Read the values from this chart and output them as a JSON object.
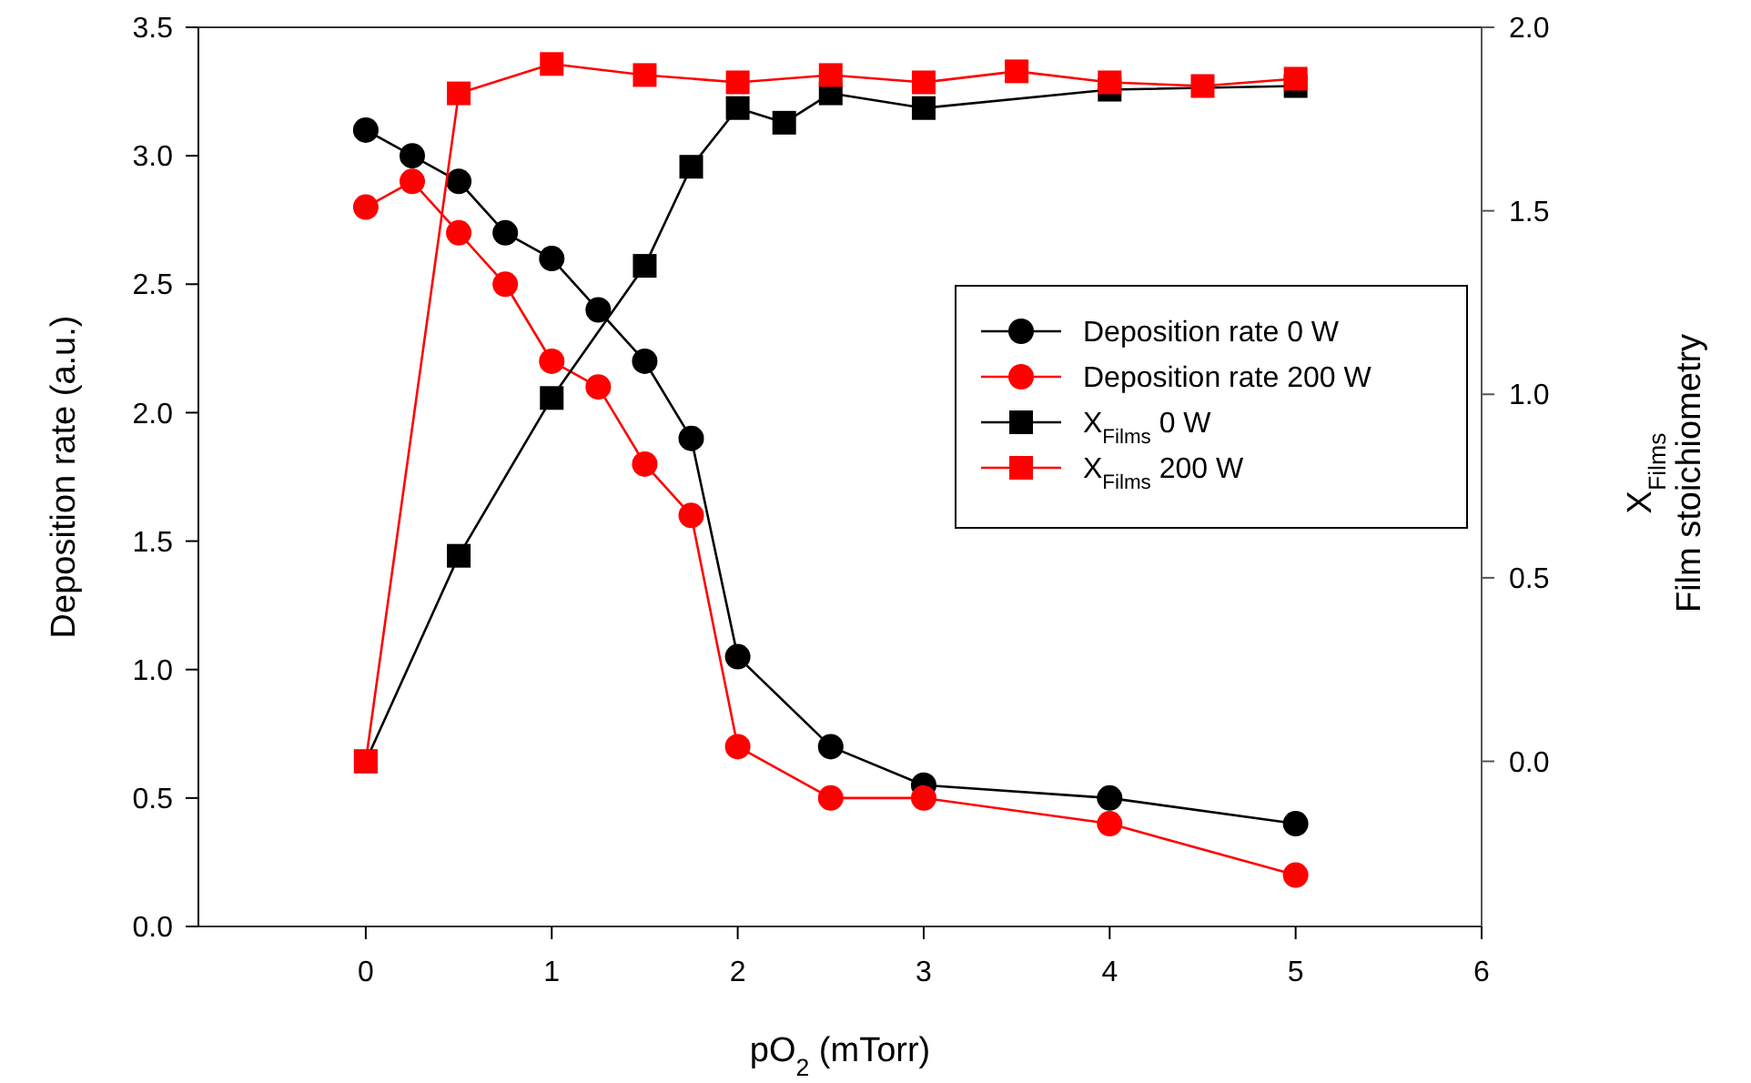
{
  "chart_data": {
    "type": "line",
    "xlabel": "pO$_{2}$ (mTorr)",
    "ylabel": "Deposition rate (a.u.)",
    "y2label": "X$_{Films}$\nFilm stoichiometry",
    "xlim": [
      -0.9,
      6
    ],
    "xticks": [
      0,
      1,
      2,
      3,
      4,
      5,
      6
    ],
    "ylim": [
      0,
      3.5
    ],
    "yticks": [
      {
        "value": 0,
        "label": "0.0"
      },
      0.5,
      {
        "value": 1,
        "label": "1.0"
      },
      1.5,
      {
        "value": 2,
        "label": "2.0"
      },
      2.5,
      {
        "value": 3,
        "label": "3.0"
      },
      3.5
    ],
    "y2lim": [
      -0.45,
      2.0
    ],
    "y2ticks": [
      {
        "value": 0,
        "label": "0.0"
      },
      0.5,
      {
        "value": 1,
        "label": "1.0"
      },
      1.5,
      {
        "value": 2,
        "label": "2.0"
      }
    ],
    "grid": false,
    "legend": "right",
    "line_style": "solid",
    "series": [
      {
        "name": "Deposition rate 0 W",
        "color": "#000000",
        "marker": "circle",
        "x": [
          0,
          0.25,
          0.5,
          0.75,
          1,
          1.25,
          1.5,
          1.75,
          2,
          2.5,
          3,
          4,
          5
        ],
        "values": [
          3.1,
          3.0,
          2.9,
          2.7,
          2.6,
          2.4,
          2.2,
          1.9,
          1.05,
          0.7,
          0.55,
          0.5,
          0.4
        ]
      },
      {
        "name": "Deposition rate 200 W",
        "color": "#ff0000",
        "marker": "circle",
        "x": [
          0,
          0.25,
          0.5,
          0.75,
          1,
          1.25,
          1.5,
          1.75,
          2,
          2.5,
          3,
          4,
          5
        ],
        "values": [
          2.8,
          2.9,
          2.7,
          2.5,
          2.2,
          2.1,
          1.8,
          1.6,
          0.7,
          0.5,
          0.5,
          0.4,
          0.2
        ]
      },
      {
        "name": "X$_{Films}$ 0 W",
        "color": "#000000",
        "marker": "square",
        "axis": "y2",
        "x": [
          0,
          0.5,
          1,
          1.5,
          1.75,
          2,
          2.25,
          2.5,
          3,
          4,
          5
        ],
        "values": [
          0.0,
          0.56,
          0.99,
          1.35,
          1.62,
          1.78,
          1.74,
          1.82,
          1.78,
          1.83,
          1.84
        ]
      },
      {
        "name": "X$_{Films}$ 200 W",
        "color": "#ff0000",
        "marker": "square",
        "axis": "y2",
        "x": [
          0,
          0.5,
          1,
          1.5,
          2,
          2.5,
          3,
          3.5,
          4,
          4.5,
          5
        ],
        "values": [
          0.0,
          1.82,
          1.9,
          1.87,
          1.85,
          1.87,
          1.85,
          1.88,
          1.85,
          1.84,
          1.86
        ]
      }
    ]
  }
}
